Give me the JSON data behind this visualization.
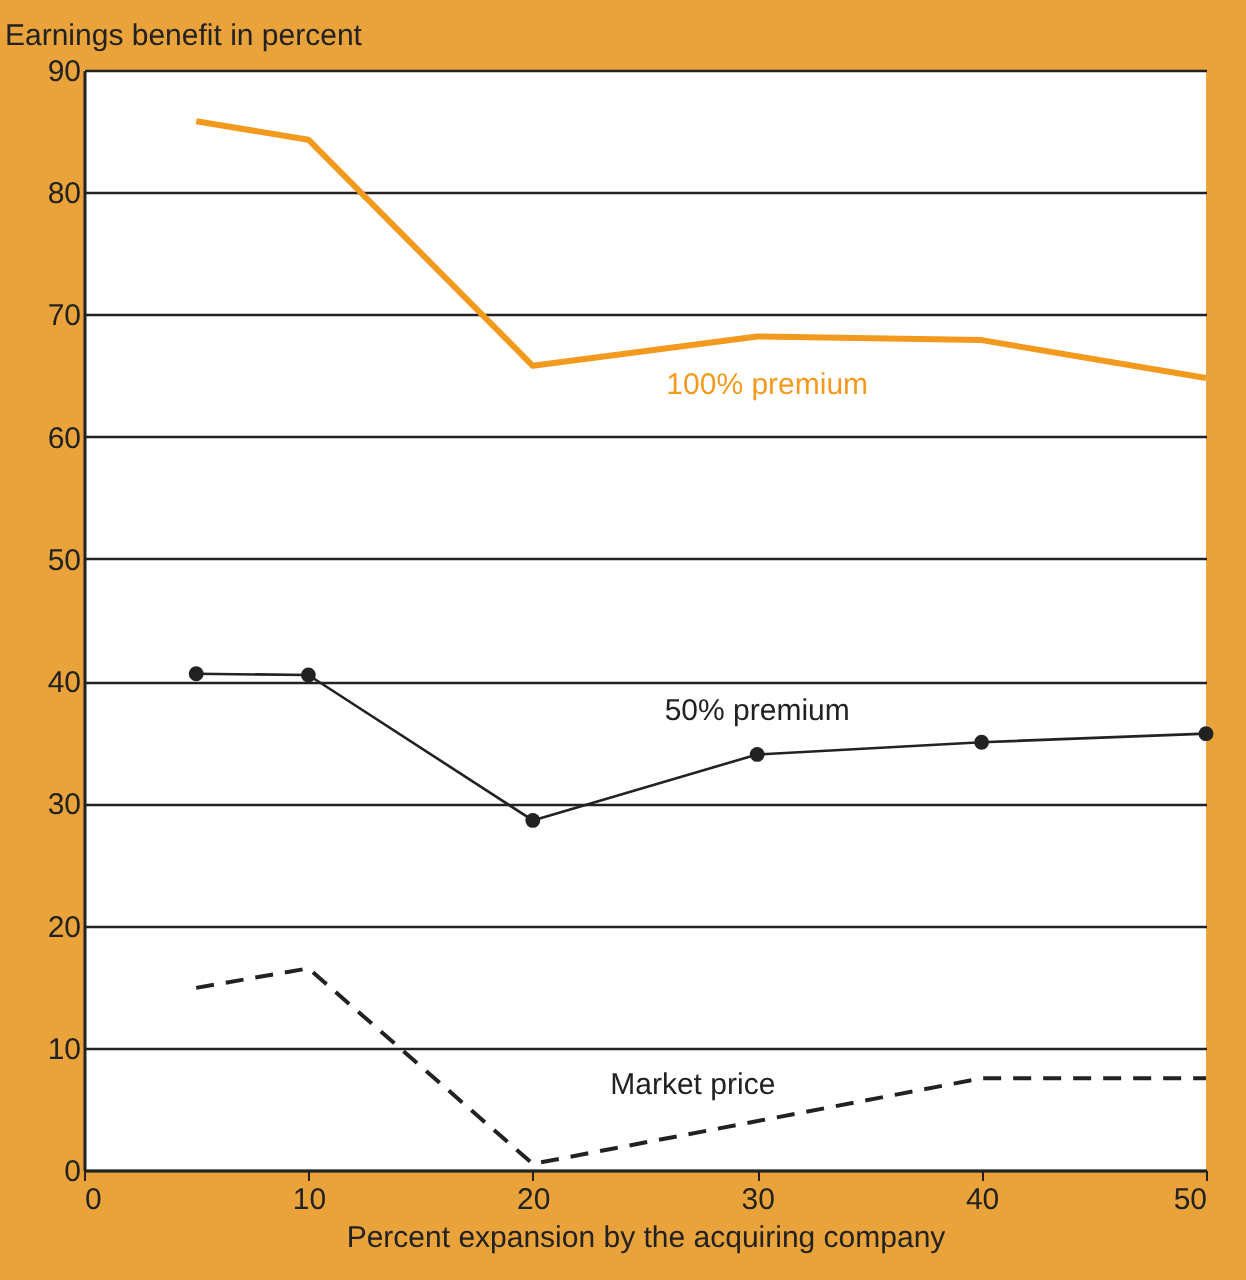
{
  "chart_data": {
    "type": "line",
    "xlabel": "Percent expansion by the acquiring company",
    "ylabel": "Earnings benefit in percent",
    "x": [
      5,
      10,
      20,
      30,
      40,
      50
    ],
    "series": [
      {
        "name": "100% premium",
        "color": "#f39a1e",
        "values": [
          85.8,
          84.3,
          65.8,
          68.2,
          67.9,
          64.8
        ],
        "marker": "none",
        "line_style": "solid"
      },
      {
        "name": "50% premium",
        "color": "#222222",
        "values": [
          40.6,
          40.5,
          28.6,
          34.0,
          35.0,
          35.7
        ],
        "marker": "circle",
        "line_style": "solid"
      },
      {
        "name": "Market price",
        "color": "#222222",
        "values": [
          14.9,
          16.5,
          0.5,
          null,
          7.5,
          7.5
        ],
        "marker": "none",
        "line_style": "dashed"
      }
    ],
    "xlim": [
      0,
      50
    ],
    "xticks": [
      0,
      10,
      20,
      30,
      40,
      50
    ],
    "ylim": [
      0,
      90
    ],
    "yticks": [
      0,
      10,
      20,
      30,
      40,
      50,
      60,
      70,
      80,
      90
    ],
    "grid": "y"
  }
}
